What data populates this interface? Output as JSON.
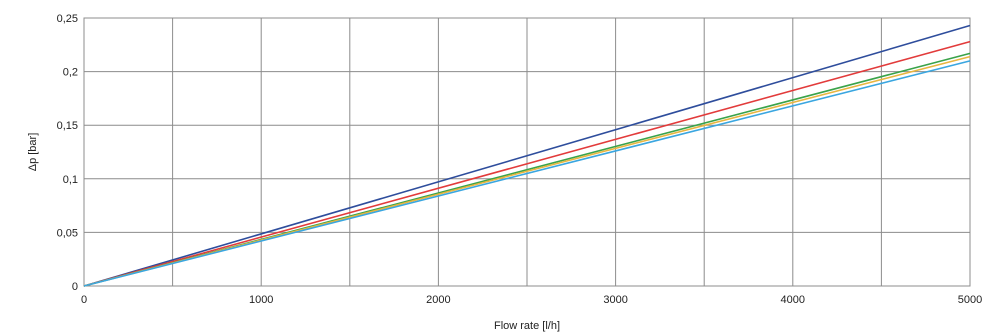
{
  "chart_data": {
    "type": "line",
    "title": "",
    "xlabel": "Flow rate [l/h]",
    "ylabel": "Δp [bar]",
    "xlim": [
      0,
      5000
    ],
    "ylim": [
      0,
      0.25
    ],
    "x_ticks": [
      0,
      1000,
      2000,
      3000,
      4000,
      5000
    ],
    "x_tick_labels": [
      "0",
      "1000",
      "2000",
      "3000",
      "4000",
      "5000"
    ],
    "y_ticks": [
      0,
      0.05,
      0.1,
      0.15,
      0.2,
      0.25
    ],
    "y_tick_labels": [
      "0",
      "0,05",
      "0,1",
      "0,15",
      "0,2",
      "0,25"
    ],
    "x_grid_values": [
      500,
      1000,
      1500,
      2000,
      2500,
      3000,
      3500,
      4000,
      4500
    ],
    "y_grid_values": [
      0.05,
      0.1,
      0.15,
      0.2
    ],
    "grid": true,
    "legend": "none",
    "series": [
      {
        "color": "#2e4d9c",
        "x": [
          0,
          5000
        ],
        "y": [
          0,
          0.243
        ]
      },
      {
        "color": "#e23b3b",
        "x": [
          0,
          5000
        ],
        "y": [
          0,
          0.228
        ]
      },
      {
        "color": "#3aa34a",
        "x": [
          0,
          5000
        ],
        "y": [
          0,
          0.217
        ]
      },
      {
        "color": "#e8b640",
        "x": [
          0,
          5000
        ],
        "y": [
          0,
          0.214
        ]
      },
      {
        "color": "#3aa6e0",
        "x": [
          0,
          5000
        ],
        "y": [
          0,
          0.21
        ]
      }
    ]
  }
}
